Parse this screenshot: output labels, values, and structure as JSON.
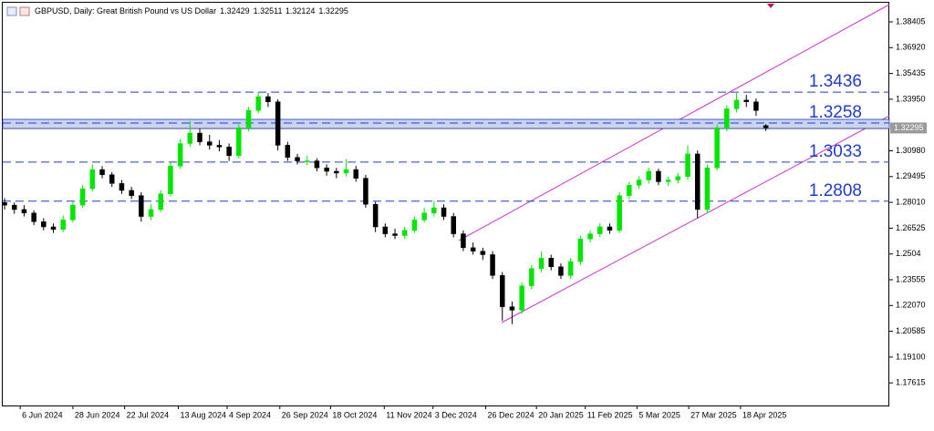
{
  "chart_data": {
    "type": "candlestick",
    "title": "GBPUSD, Daily:  Great British Pound vs US Dollar",
    "header_ohlc": [
      1.32429,
      1.32511,
      1.32124,
      1.32295
    ],
    "up_color": "#00e600",
    "down_color": "#000000",
    "level_color": "#1f3bd6",
    "channel_color": "#cc33cc",
    "ylim": [
      1.16314,
      1.39245
    ],
    "yticks": [
      1.38405,
      {
        "value": 1.3692,
        "label": "1.36920"
      },
      1.35435,
      {
        "value": 1.3395,
        "label": "1.33950"
      },
      {
        "value": 1.3098,
        "label": "1.30980"
      },
      1.29495,
      {
        "value": 1.2801,
        "label": "1.28010"
      },
      1.26525,
      1.2504,
      1.23555,
      {
        "value": 1.2207,
        "label": "1.22070"
      },
      1.20585,
      {
        "value": 1.191,
        "label": "1.19100"
      },
      1.17615
    ],
    "xlim": [
      -0.47,
      90.65
    ],
    "xticks": [
      {
        "value": 1.6,
        "label": "6 Jun 2024"
      },
      {
        "value": 7.0,
        "label": "28 Jun 2024"
      },
      {
        "value": 12.3,
        "label": "22 Jul 2024"
      },
      {
        "value": 17.8,
        "label": "13 Aug 2024"
      },
      {
        "value": 22.8,
        "label": "4 Sep 2024"
      },
      {
        "value": 28.2,
        "label": "26 Sep 2024"
      },
      {
        "value": 33.4,
        "label": "18 Oct 2024"
      },
      {
        "value": 38.9,
        "label": "11 Nov 2024"
      },
      {
        "value": 43.9,
        "label": "3 Dec 2024"
      },
      {
        "value": 49.3,
        "label": "26 Dec 2024"
      },
      {
        "value": 54.5,
        "label": "20 Jan 2025"
      },
      {
        "value": 59.5,
        "label": "11 Feb 2025"
      },
      {
        "value": 64.8,
        "label": "5 Mar 2025"
      },
      {
        "value": 70.1,
        "label": "27 Mar 2025"
      },
      {
        "value": 75.4,
        "label": "18 Apr 2025"
      }
    ],
    "levels": [
      1.3436,
      1.3258,
      1.3033,
      1.2808
    ],
    "zone": [
      1.3226,
      1.3279
    ],
    "last_price": 1.32295,
    "candles": [
      [
        1.28,
        1.2825,
        1.276,
        1.2785
      ],
      [
        1.2785,
        1.28,
        1.2735,
        1.276
      ],
      [
        1.276,
        1.2785,
        1.272,
        1.274
      ],
      [
        1.274,
        1.2755,
        1.267,
        1.269
      ],
      [
        1.269,
        1.271,
        1.264,
        1.266
      ],
      [
        1.266,
        1.268,
        1.2625,
        1.2645
      ],
      [
        1.2645,
        1.2725,
        1.263,
        1.27
      ],
      [
        1.27,
        1.2805,
        1.2685,
        1.2785
      ],
      [
        1.2785,
        1.29,
        1.277,
        1.288
      ],
      [
        1.288,
        1.302,
        1.2865,
        1.299
      ],
      [
        1.299,
        1.301,
        1.294,
        1.296
      ],
      [
        1.296,
        1.2975,
        1.289,
        1.291
      ],
      [
        1.291,
        1.293,
        1.285,
        1.287
      ],
      [
        1.287,
        1.289,
        1.282,
        1.284
      ],
      [
        1.284,
        1.286,
        1.269,
        1.272
      ],
      [
        1.272,
        1.279,
        1.27,
        1.276
      ],
      [
        1.276,
        1.287,
        1.2745,
        1.285
      ],
      [
        1.285,
        1.303,
        1.2835,
        1.301
      ],
      [
        1.301,
        1.3165,
        1.2995,
        1.314
      ],
      [
        1.314,
        1.327,
        1.312,
        1.32
      ],
      [
        1.32,
        1.3225,
        1.313,
        1.315
      ],
      [
        1.315,
        1.319,
        1.3105,
        1.313
      ],
      [
        1.313,
        1.316,
        1.3095,
        1.312
      ],
      [
        1.312,
        1.314,
        1.304,
        1.307
      ],
      [
        1.307,
        1.325,
        1.3055,
        1.323
      ],
      [
        1.323,
        1.335,
        1.321,
        1.333
      ],
      [
        1.333,
        1.3435,
        1.3315,
        1.341
      ],
      [
        1.341,
        1.343,
        1.335,
        1.338
      ],
      [
        1.338,
        1.3395,
        1.31,
        1.313
      ],
      [
        1.313,
        1.315,
        1.304,
        1.306
      ],
      [
        1.306,
        1.308,
        1.302,
        1.304
      ],
      [
        1.304,
        1.307,
        1.3015,
        1.304
      ],
      [
        1.304,
        1.3055,
        1.298,
        1.3
      ],
      [
        1.3,
        1.302,
        1.2955,
        1.298
      ],
      [
        1.298,
        1.3,
        1.294,
        1.297
      ],
      [
        1.297,
        1.305,
        1.295,
        1.299
      ],
      [
        1.299,
        1.301,
        1.292,
        1.294
      ],
      [
        1.294,
        1.296,
        1.277,
        1.279
      ],
      [
        1.279,
        1.2805,
        1.263,
        1.266
      ],
      [
        1.266,
        1.268,
        1.26,
        1.262
      ],
      [
        1.262,
        1.265,
        1.259,
        1.261
      ],
      [
        1.261,
        1.266,
        1.259,
        1.264
      ],
      [
        1.264,
        1.272,
        1.2625,
        1.27
      ],
      [
        1.27,
        1.277,
        1.2685,
        1.274
      ],
      [
        1.274,
        1.281,
        1.272,
        1.277
      ],
      [
        1.277,
        1.279,
        1.27,
        1.272
      ],
      [
        1.272,
        1.274,
        1.26,
        1.262
      ],
      [
        1.262,
        1.264,
        1.252,
        1.254
      ],
      [
        1.254,
        1.257,
        1.25,
        1.252
      ],
      [
        1.252,
        1.254,
        1.247,
        1.25
      ],
      [
        1.25,
        1.252,
        1.236,
        1.238
      ],
      [
        1.238,
        1.24,
        1.212,
        1.22
      ],
      [
        1.22,
        1.223,
        1.21,
        1.218
      ],
      [
        1.218,
        1.234,
        1.216,
        1.232
      ],
      [
        1.232,
        1.244,
        1.23,
        1.242
      ],
      [
        1.242,
        1.252,
        1.24,
        1.248
      ],
      [
        1.248,
        1.25,
        1.241,
        1.243
      ],
      [
        1.243,
        1.245,
        1.236,
        1.238
      ],
      [
        1.238,
        1.248,
        1.236,
        1.246
      ],
      [
        1.246,
        1.261,
        1.244,
        1.259
      ],
      [
        1.259,
        1.264,
        1.257,
        1.262
      ],
      [
        1.262,
        1.268,
        1.26,
        1.266
      ],
      [
        1.266,
        1.268,
        1.262,
        1.264
      ],
      [
        1.264,
        1.286,
        1.2625,
        1.284
      ],
      [
        1.284,
        1.292,
        1.282,
        1.29
      ],
      [
        1.29,
        1.295,
        1.288,
        1.293
      ],
      [
        1.293,
        1.3,
        1.291,
        1.298
      ],
      [
        1.298,
        1.2995,
        1.29,
        1.292
      ],
      [
        1.292,
        1.295,
        1.2895,
        1.293
      ],
      [
        1.293,
        1.297,
        1.291,
        1.295
      ],
      [
        1.295,
        1.313,
        1.293,
        1.308
      ],
      [
        1.308,
        1.31,
        1.271,
        1.276
      ],
      [
        1.276,
        1.302,
        1.274,
        1.3
      ],
      [
        1.3,
        1.325,
        1.2985,
        1.323
      ],
      [
        1.323,
        1.336,
        1.321,
        1.334
      ],
      [
        1.334,
        1.343,
        1.332,
        1.339
      ],
      [
        1.339,
        1.342,
        1.335,
        1.338
      ],
      [
        1.338,
        1.34,
        1.33,
        1.333
      ],
      [
        1.32429,
        1.32511,
        1.32124,
        1.32295
      ]
    ]
  }
}
